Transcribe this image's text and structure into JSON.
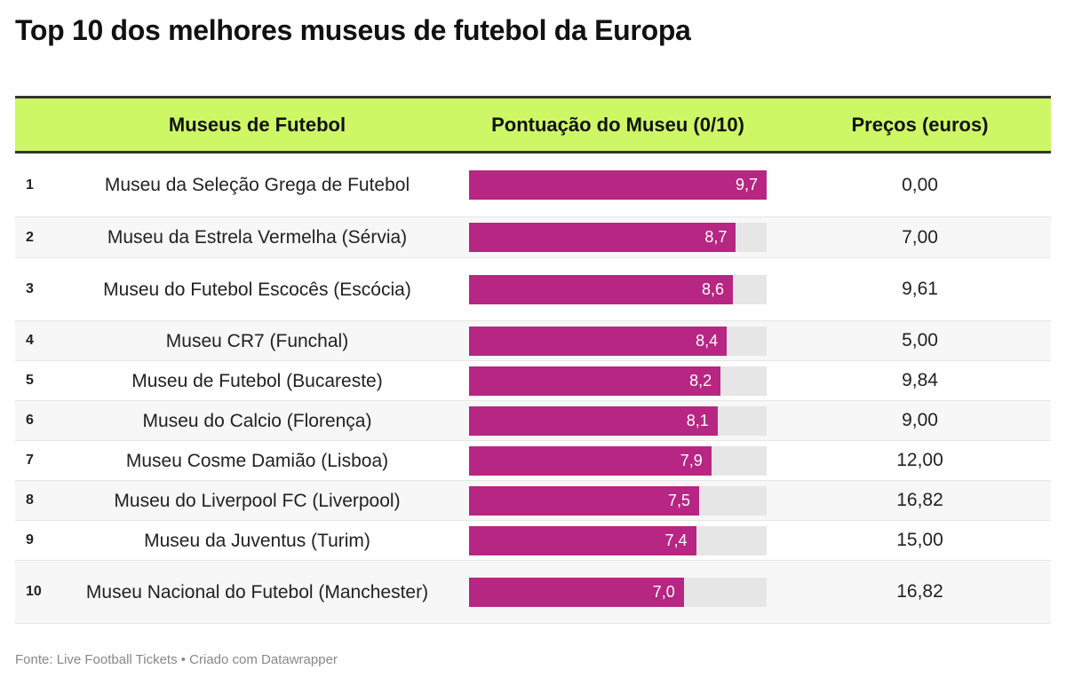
{
  "title": "Top 10 dos melhores museus de futebol da Europa",
  "footer": "Fonte: Live Football Tickets • Criado com Datawrapper",
  "colors": {
    "header_bg": "#cdf765",
    "bar": "#b72682",
    "bar_bg": "#e6e6e6"
  },
  "chart_data": {
    "type": "table",
    "columns": [
      "",
      "Museus de Futebol",
      "Pontuação do Museu (0/10)",
      "Preços (euros)"
    ],
    "bar_max": 9.7,
    "rows": [
      {
        "rank": "1",
        "name": "Museu da Seleção Grega de Futebol",
        "score": 9.7,
        "score_label": "9,7",
        "price": "0,00"
      },
      {
        "rank": "2",
        "name": "Museu da Estrela Vermelha (Sérvia)",
        "score": 8.7,
        "score_label": "8,7",
        "price": "7,00"
      },
      {
        "rank": "3",
        "name": "Museu do Futebol Escocês (Escócia)",
        "score": 8.6,
        "score_label": "8,6",
        "price": "9,61"
      },
      {
        "rank": "4",
        "name": "Museu CR7 (Funchal)",
        "score": 8.4,
        "score_label": "8,4",
        "price": "5,00"
      },
      {
        "rank": "5",
        "name": "Museu de Futebol (Bucareste)",
        "score": 8.2,
        "score_label": "8,2",
        "price": "9,84"
      },
      {
        "rank": "6",
        "name": "Museu do Calcio (Florença)",
        "score": 8.1,
        "score_label": "8,1",
        "price": "9,00"
      },
      {
        "rank": "7",
        "name": "Museu Cosme Damião (Lisboa)",
        "score": 7.9,
        "score_label": "7,9",
        "price": "12,00"
      },
      {
        "rank": "8",
        "name": "Museu do Liverpool FC (Liverpool)",
        "score": 7.5,
        "score_label": "7,5",
        "price": "16,82"
      },
      {
        "rank": "9",
        "name": "Museu da Juventus (Turim)",
        "score": 7.4,
        "score_label": "7,4",
        "price": "15,00"
      },
      {
        "rank": "10",
        "name": "Museu Nacional do Futebol (Manchester)",
        "score": 7.0,
        "score_label": "7,0",
        "price": "16,82"
      }
    ]
  }
}
